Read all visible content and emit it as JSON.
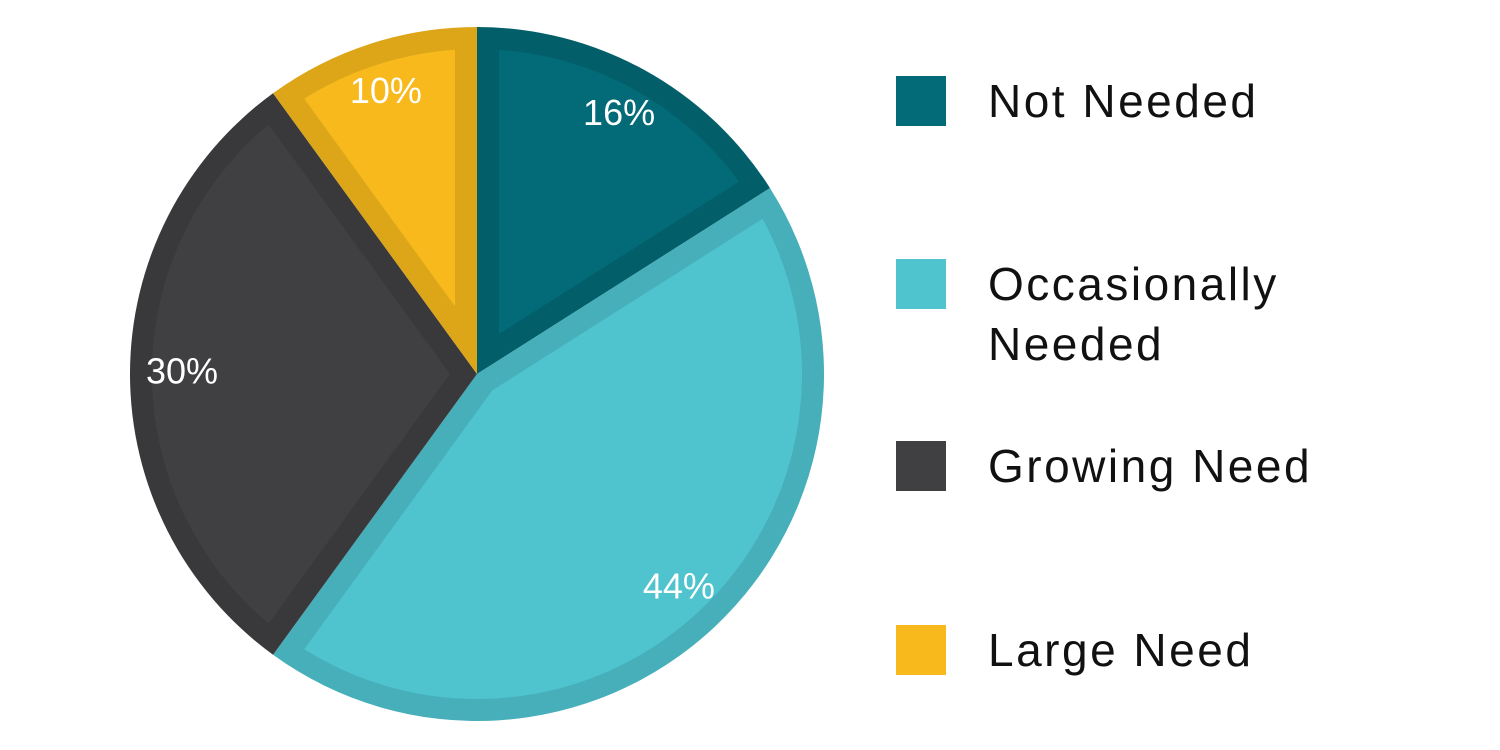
{
  "chart_data": {
    "type": "pie",
    "categories": [
      "Not Needed",
      "Occasionally Needed",
      "Growing Need",
      "Large Need"
    ],
    "values": [
      16,
      44,
      30,
      10
    ],
    "value_labels": [
      "16%",
      "44%",
      "30%",
      "10%"
    ],
    "colors": [
      "#036a77",
      "#4fc3ce",
      "#404042",
      "#f7b91c"
    ],
    "legend": "right"
  }
}
